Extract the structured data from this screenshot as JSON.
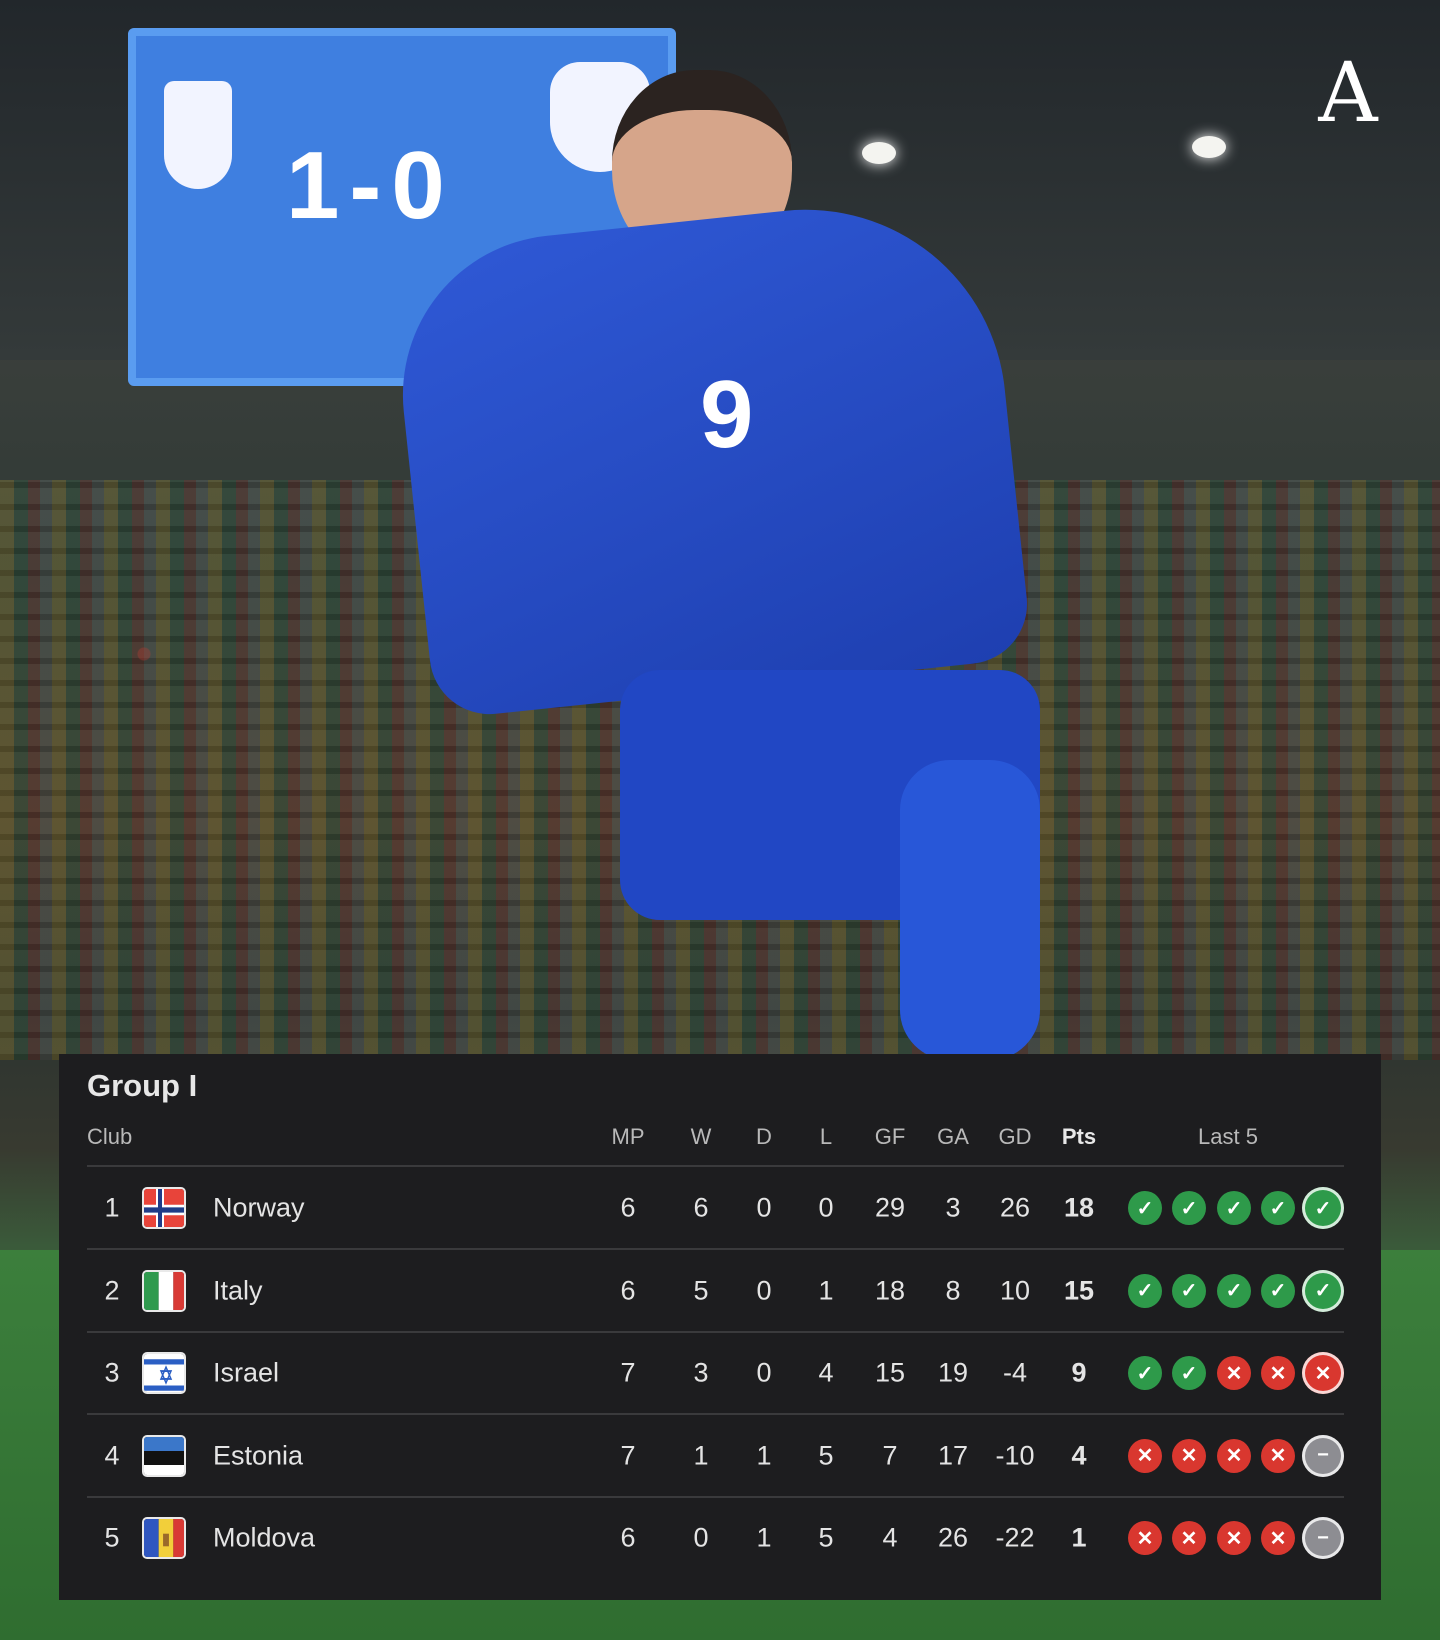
{
  "scoreboard": {
    "score": "1-0"
  },
  "brand": {
    "logo_letter": "A"
  },
  "table": {
    "title": "Group I",
    "headers": {
      "club": "Club",
      "mp": "MP",
      "w": "W",
      "d": "D",
      "l": "L",
      "gf": "GF",
      "ga": "GA",
      "gd": "GD",
      "pts": "Pts",
      "last5": "Last 5"
    },
    "rows": [
      {
        "rank": "1",
        "team": "Norway",
        "mp": "6",
        "w": "6",
        "d": "0",
        "l": "0",
        "gf": "29",
        "ga": "3",
        "gd": "26",
        "pts": "18",
        "last5": [
          "W",
          "W",
          "W",
          "W",
          "W"
        ]
      },
      {
        "rank": "2",
        "team": "Italy",
        "mp": "6",
        "w": "5",
        "d": "0",
        "l": "1",
        "gf": "18",
        "ga": "8",
        "gd": "10",
        "pts": "15",
        "last5": [
          "W",
          "W",
          "W",
          "W",
          "W"
        ]
      },
      {
        "rank": "3",
        "team": "Israel",
        "mp": "7",
        "w": "3",
        "d": "0",
        "l": "4",
        "gf": "15",
        "ga": "19",
        "gd": "-4",
        "pts": "9",
        "last5": [
          "W",
          "W",
          "L",
          "L",
          "L"
        ]
      },
      {
        "rank": "4",
        "team": "Estonia",
        "mp": "7",
        "w": "1",
        "d": "1",
        "l": "5",
        "gf": "7",
        "ga": "17",
        "gd": "-10",
        "pts": "4",
        "last5": [
          "L",
          "L",
          "L",
          "L",
          "-"
        ]
      },
      {
        "rank": "5",
        "team": "Moldova",
        "mp": "6",
        "w": "0",
        "d": "1",
        "l": "5",
        "gf": "4",
        "ga": "26",
        "gd": "-22",
        "pts": "1",
        "last5": [
          "L",
          "L",
          "L",
          "L",
          "-"
        ]
      }
    ]
  },
  "colors": {
    "win": "#2e9a4a",
    "loss": "#d9372f",
    "none": "#8d8d92",
    "panel": "#1d1d1f"
  }
}
